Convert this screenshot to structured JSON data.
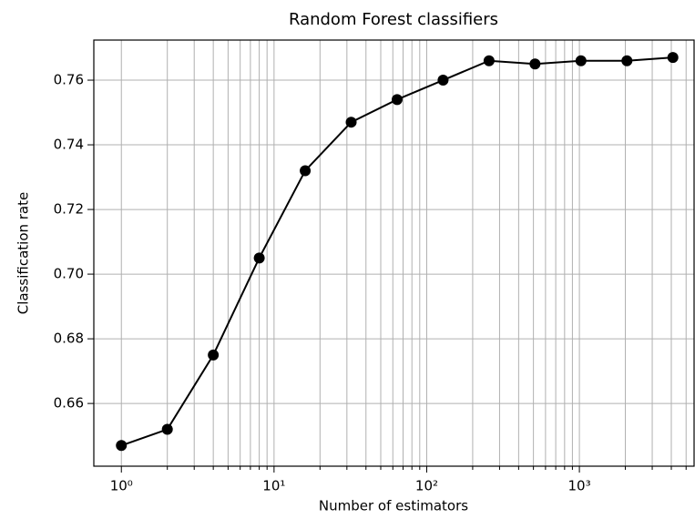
{
  "chart_data": {
    "type": "line",
    "title": "Random Forest classifiers",
    "x_label": "Number of estimators",
    "y_label": "Classification rate",
    "x": [
      1,
      2,
      4,
      8,
      16,
      32,
      64,
      128,
      256,
      512,
      1024,
      2048,
      4096
    ],
    "series": [
      {
        "color": "#000000",
        "values": [
          0.647,
          0.652,
          0.675,
          0.705,
          0.732,
          0.747,
          0.754,
          0.76,
          0.766,
          0.765,
          0.766,
          0.766,
          0.767
        ]
      }
    ],
    "xscale": "log",
    "xlim": [
      0.66,
      5640
    ],
    "ylim": [
      0.6406,
      0.7724
    ],
    "xticks": [
      {
        "value": 1,
        "label": "10⁰"
      },
      {
        "value": 10,
        "label": "10¹"
      },
      {
        "value": 100,
        "label": "10²"
      },
      {
        "value": 1000,
        "label": "10³"
      }
    ],
    "xminorticks": [
      2,
      3,
      4,
      5,
      6,
      7,
      8,
      9,
      20,
      30,
      40,
      50,
      60,
      70,
      80,
      90,
      200,
      300,
      400,
      500,
      600,
      700,
      800,
      900,
      2000,
      3000,
      4000,
      5000
    ],
    "yticks": [
      0.66,
      0.68,
      {
        "value": 0.7,
        "label": "0.70"
      },
      0.72,
      0.74,
      0.76
    ],
    "grid": true
  }
}
